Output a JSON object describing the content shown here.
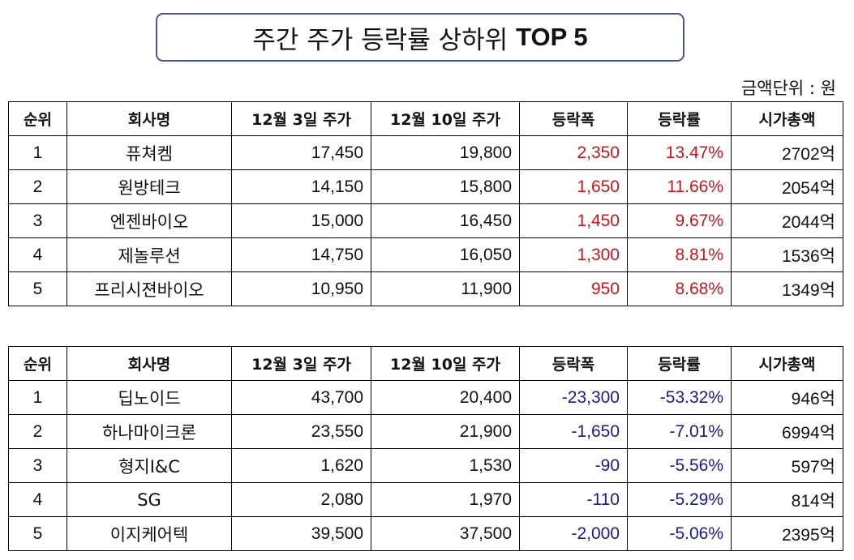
{
  "title": {
    "ko": "주간 주가 등락률 상하위",
    "en": "TOP 5"
  },
  "unit_label": "금액단위 : 원",
  "colors": {
    "up": "#d0141c",
    "down": "#1a1a8c",
    "title_border": "#4a5a78"
  },
  "headers": [
    "순위",
    "회사명",
    "12월 3일 주가",
    "12월 10일 주가",
    "등락폭",
    "등락률",
    "시가총액"
  ],
  "top_gainers": [
    {
      "rank": "1",
      "name": "퓨쳐켐",
      "price_dec3": "17,450",
      "price_dec10": "19,800",
      "change": "2,350",
      "change_rate": "13.47%",
      "market_cap": "2702억"
    },
    {
      "rank": "2",
      "name": "원방테크",
      "price_dec3": "14,150",
      "price_dec10": "15,800",
      "change": "1,650",
      "change_rate": "11.66%",
      "market_cap": "2054억"
    },
    {
      "rank": "3",
      "name": "엔젠바이오",
      "price_dec3": "15,000",
      "price_dec10": "16,450",
      "change": "1,450",
      "change_rate": "9.67%",
      "market_cap": "2044억"
    },
    {
      "rank": "4",
      "name": "제놀루션",
      "price_dec3": "14,750",
      "price_dec10": "16,050",
      "change": "1,300",
      "change_rate": "8.81%",
      "market_cap": "1536억"
    },
    {
      "rank": "5",
      "name": "프리시젼바이오",
      "price_dec3": "10,950",
      "price_dec10": "11,900",
      "change": "950",
      "change_rate": "8.68%",
      "market_cap": "1349억"
    }
  ],
  "top_losers": [
    {
      "rank": "1",
      "name": "딥노이드",
      "price_dec3": "43,700",
      "price_dec10": "20,400",
      "change": "-23,300",
      "change_rate": "-53.32%",
      "market_cap": "946억"
    },
    {
      "rank": "2",
      "name": "하나마이크론",
      "price_dec3": "23,550",
      "price_dec10": "21,900",
      "change": "-1,650",
      "change_rate": "-7.01%",
      "market_cap": "6994억"
    },
    {
      "rank": "3",
      "name": "형지I&C",
      "price_dec3": "1,620",
      "price_dec10": "1,530",
      "change": "-90",
      "change_rate": "-5.56%",
      "market_cap": "597억"
    },
    {
      "rank": "4",
      "name": "SG",
      "price_dec3": "2,080",
      "price_dec10": "1,970",
      "change": "-110",
      "change_rate": "-5.29%",
      "market_cap": "814억"
    },
    {
      "rank": "5",
      "name": "이지케어텍",
      "price_dec3": "39,500",
      "price_dec10": "37,500",
      "change": "-2,000",
      "change_rate": "-5.06%",
      "market_cap": "2395억"
    }
  ]
}
